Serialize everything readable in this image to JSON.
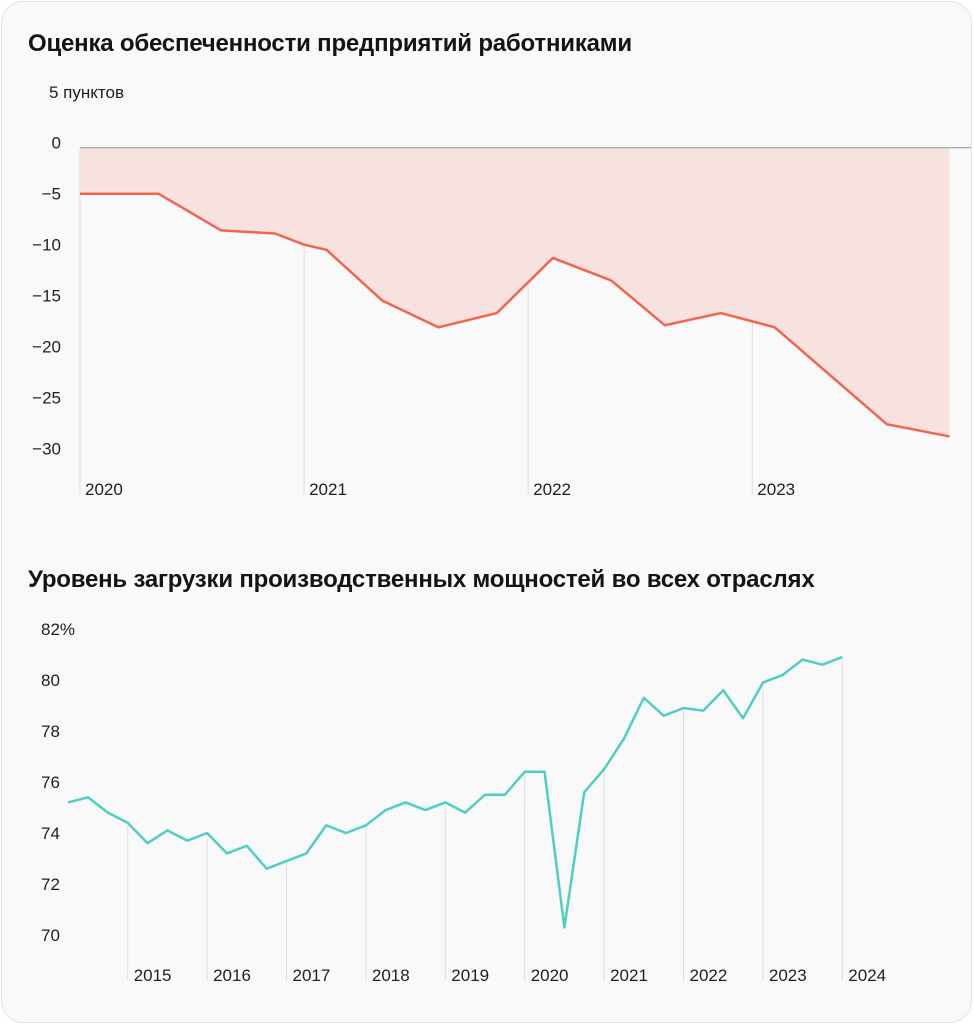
{
  "chart_data": [
    {
      "type": "area",
      "title": "Оценка обеспеченности предприятий работниками",
      "ylabel": "5 пунктов",
      "ylim": [
        -30,
        0
      ],
      "yticks": [
        0,
        -5,
        -10,
        -15,
        -20,
        -25,
        -30
      ],
      "ytick_labels": [
        "0",
        "−5",
        "−10",
        "−15",
        "−20",
        "−25",
        "−30"
      ],
      "xticks": [
        2020,
        2021,
        2022,
        2023
      ],
      "xtick_labels": [
        "2020",
        "2021",
        "2022",
        "2023"
      ],
      "x": [
        2020.0,
        2020.35,
        2020.63,
        2020.87,
        2021.0,
        2021.1,
        2021.35,
        2021.6,
        2021.86,
        2022.11,
        2022.37,
        2022.61,
        2022.86,
        2023.1,
        2023.6,
        2023.88
      ],
      "values": [
        -5.0,
        -5.0,
        -8.6,
        -8.9,
        -10.0,
        -10.5,
        -15.5,
        -18.1,
        -16.7,
        -11.3,
        -13.5,
        -17.9,
        -16.7,
        -18.1,
        -27.6,
        -28.8
      ],
      "grid": "vertical year lines",
      "colors": {
        "line": "#f26450",
        "fill": "#f8e2e0"
      }
    },
    {
      "type": "line",
      "title": "Уровень загрузки производственных мощностей во всех отраслях",
      "ylim": [
        70,
        82
      ],
      "yticks": [
        82,
        80,
        78,
        76,
        74,
        72,
        70
      ],
      "ytick_labels": [
        "82%",
        "80",
        "78",
        "76",
        "74",
        "72",
        "70"
      ],
      "xticks": [
        2015,
        2016,
        2017,
        2018,
        2019,
        2020,
        2021,
        2022,
        2023,
        2024
      ],
      "xtick_labels": [
        "2015",
        "2016",
        "2017",
        "2018",
        "2019",
        "2020",
        "2021",
        "2022",
        "2023",
        "2024"
      ],
      "x_start": 2014.25,
      "x_step": 0.25,
      "values": [
        75.2,
        75.4,
        74.8,
        74.4,
        73.6,
        74.1,
        73.7,
        74.0,
        73.2,
        73.5,
        72.6,
        72.9,
        73.2,
        74.3,
        74.0,
        74.3,
        74.9,
        75.2,
        74.9,
        75.2,
        74.8,
        75.5,
        75.5,
        76.4,
        76.4,
        70.3,
        75.6,
        76.5,
        77.7,
        79.3,
        78.6,
        78.9,
        78.8,
        79.6,
        78.5,
        79.9,
        80.2,
        80.8,
        80.6,
        80.9
      ],
      "grid": "vertical year lines",
      "colors": {
        "line": "#4fcfc4"
      }
    }
  ]
}
